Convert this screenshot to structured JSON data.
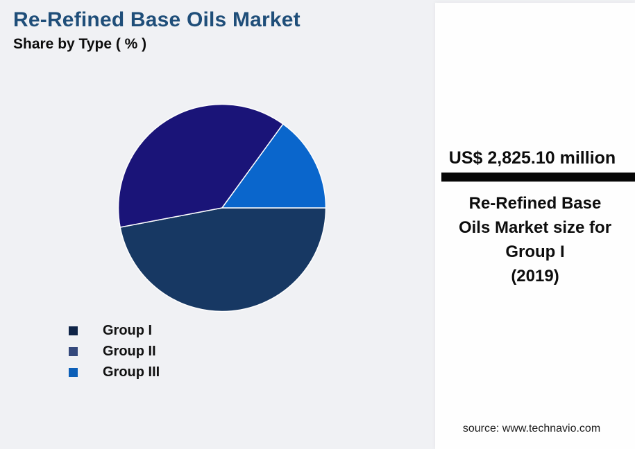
{
  "page": {
    "background_color": "#f0f1f4",
    "panel_background_color": "#fefefe"
  },
  "header": {
    "title": "Re-Refined Base Oils Market",
    "subtitle": "Share by Type ( % )",
    "title_color": "#1f4e79"
  },
  "chart_data": {
    "type": "pie",
    "title": "Re-Refined Base Oils Market Share by Type ( % )",
    "categories": [
      "Group I",
      "Group II",
      "Group III"
    ],
    "values": [
      47,
      38,
      15
    ],
    "unit": "%",
    "start_angle_deg": 0,
    "direction": "clockwise",
    "slice_colors": [
      "#173863",
      "#1a1478",
      "#0a66cc"
    ],
    "legend_colors": [
      "#0f2447",
      "#35497c",
      "#0c5fb8"
    ],
    "legend_position": "bottom-left",
    "data_labels": false
  },
  "panel": {
    "value": "US$ 2,825.10 million",
    "description": "Re-Refined Base\nOils Market size for\nGroup I\n(2019)",
    "divider_color": "#070707",
    "source": "source: www.technavio.com"
  }
}
